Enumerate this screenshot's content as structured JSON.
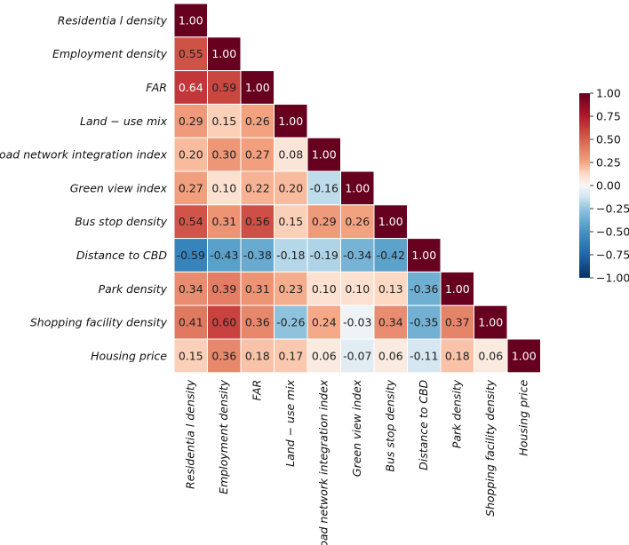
{
  "chart_data": {
    "type": "heatmap",
    "title": "",
    "xlabel": "",
    "ylabel": "",
    "labels": [
      "Residentia l density",
      "Employment density",
      "FAR",
      "Land − use mix",
      "Road network integration index",
      "Green view index",
      "Bus stop density",
      "Distance to CBD",
      "Park density",
      "Shopping facility density",
      "Housing price"
    ],
    "matrix": [
      [
        1.0
      ],
      [
        0.55,
        1.0
      ],
      [
        0.64,
        0.59,
        1.0
      ],
      [
        0.29,
        0.15,
        0.26,
        1.0
      ],
      [
        0.2,
        0.3,
        0.27,
        0.08,
        1.0
      ],
      [
        0.27,
        0.1,
        0.22,
        0.2,
        -0.16,
        1.0
      ],
      [
        0.54,
        0.31,
        0.56,
        0.15,
        0.29,
        0.26,
        1.0
      ],
      [
        -0.59,
        -0.43,
        -0.38,
        -0.18,
        -0.19,
        -0.34,
        -0.42,
        1.0
      ],
      [
        0.34,
        0.39,
        0.31,
        0.23,
        0.1,
        0.1,
        0.13,
        -0.36,
        1.0
      ],
      [
        0.41,
        0.6,
        0.36,
        -0.26,
        0.24,
        -0.03,
        0.34,
        -0.35,
        0.37,
        1.0
      ],
      [
        0.15,
        0.36,
        0.18,
        0.17,
        0.06,
        -0.07,
        0.06,
        -0.11,
        0.18,
        0.06,
        1.0
      ]
    ],
    "value_format": "0.00",
    "colormap": "RdBu_r",
    "vmin": -1.0,
    "vmax": 1.0,
    "mask": "upper-triangle",
    "colorbar": {
      "position": "right",
      "ticks": [
        -1.0,
        -0.75,
        -0.5,
        -0.25,
        0.0,
        0.25,
        0.5,
        0.75,
        1.0
      ],
      "tick_labels": [
        "−1.00",
        "−0.75",
        "−0.50",
        "−0.25",
        "0.00",
        "0.25",
        "0.50",
        "0.75",
        "1.00"
      ]
    }
  }
}
